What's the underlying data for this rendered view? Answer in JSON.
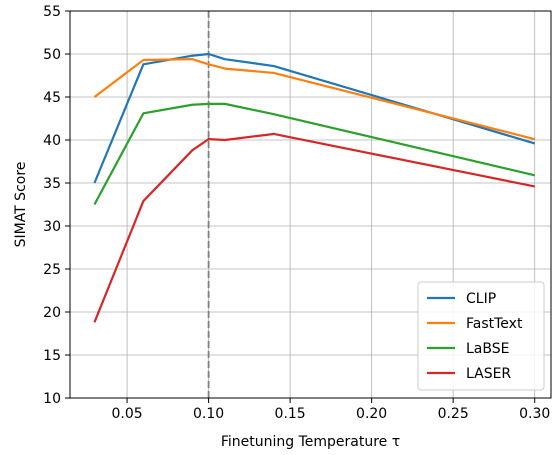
{
  "chart_data": {
    "type": "line",
    "xlabel": "Finetuning Temperature τ",
    "ylabel": "SIMAT Score",
    "xlim": [
      0.015,
      0.31
    ],
    "ylim": [
      10,
      55
    ],
    "xticks": [
      0.05,
      0.1,
      0.15,
      0.2,
      0.25,
      0.3
    ],
    "xtick_labels": [
      "0.05",
      "0.10",
      "0.15",
      "0.20",
      "0.25",
      "0.30"
    ],
    "yticks": [
      10,
      15,
      20,
      25,
      30,
      35,
      40,
      45,
      50,
      55
    ],
    "ytick_labels": [
      "10",
      "15",
      "20",
      "25",
      "30",
      "35",
      "40",
      "45",
      "50",
      "55"
    ],
    "grid": true,
    "legend_position": "lower-right",
    "vline": {
      "x": 0.1,
      "style": "dashed",
      "color": "#7f7f7f"
    },
    "x": [
      0.03,
      0.06,
      0.09,
      0.1,
      0.11,
      0.14,
      0.3
    ],
    "series": [
      {
        "name": "CLIP",
        "color": "#1f77b4",
        "values": [
          35.0,
          48.8,
          49.8,
          50.0,
          49.4,
          48.6,
          39.6
        ]
      },
      {
        "name": "FastText",
        "color": "#ff7f0e",
        "values": [
          45.0,
          49.3,
          49.4,
          48.8,
          48.3,
          47.8,
          40.1
        ]
      },
      {
        "name": "LaBSE",
        "color": "#2ca02c",
        "values": [
          32.5,
          43.1,
          44.1,
          44.2,
          44.2,
          43.0,
          35.9
        ]
      },
      {
        "name": "LASER",
        "color": "#d62728",
        "values": [
          18.8,
          32.9,
          38.8,
          40.1,
          40.0,
          40.7,
          34.6
        ]
      }
    ]
  }
}
